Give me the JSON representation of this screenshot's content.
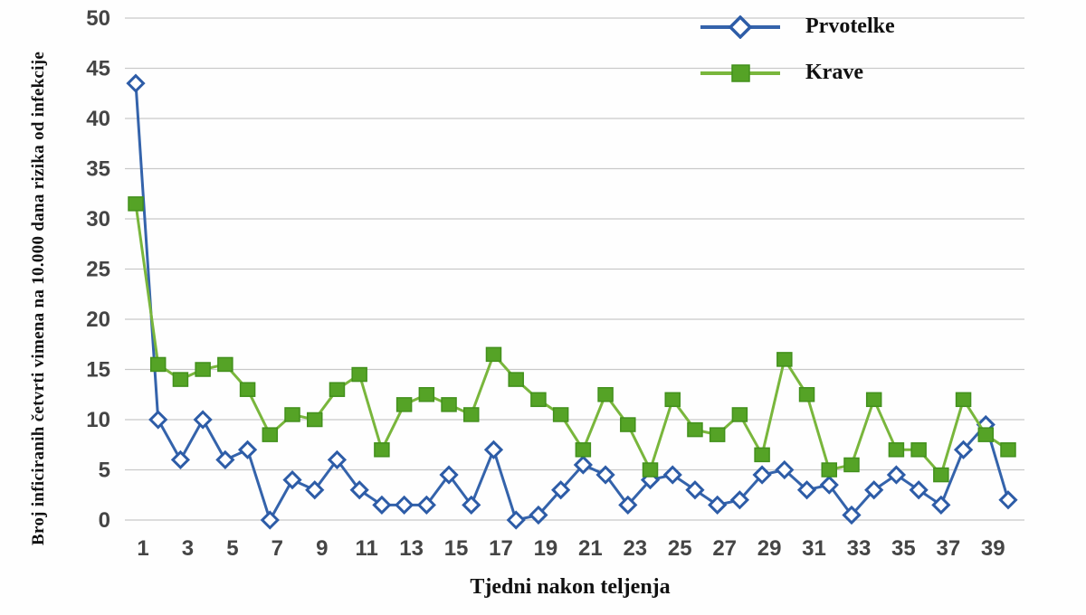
{
  "chart_data": {
    "type": "line",
    "title": "",
    "xlabel": "Tjedni nakon teljenja",
    "ylabel": "Broj inficiranih četvrti vimena na 10.000 dana rizika od infekcije",
    "x": [
      1,
      2,
      3,
      4,
      5,
      6,
      7,
      8,
      9,
      10,
      11,
      12,
      13,
      14,
      15,
      16,
      17,
      18,
      19,
      20,
      21,
      22,
      23,
      24,
      25,
      26,
      27,
      28,
      29,
      30,
      31,
      32,
      33,
      34,
      35,
      36,
      37,
      38,
      39,
      40
    ],
    "x_tick_labels": [
      "1",
      "3",
      "5",
      "7",
      "9",
      "11",
      "13",
      "15",
      "17",
      "19",
      "21",
      "23",
      "25",
      "27",
      "29",
      "31",
      "33",
      "35",
      "37",
      "39"
    ],
    "x_ticks_at": [
      1,
      3,
      5,
      7,
      9,
      11,
      13,
      15,
      17,
      19,
      21,
      23,
      25,
      27,
      29,
      31,
      33,
      35,
      37,
      39
    ],
    "y_ticks": [
      0,
      5,
      10,
      15,
      20,
      25,
      30,
      35,
      40,
      45,
      50
    ],
    "ylim": [
      0,
      50
    ],
    "grid": "horizontal",
    "gridline_color": "#c9c9c9",
    "legend_position": "top-right-inside",
    "series": [
      {
        "name": "Prvotelke",
        "marker": "open-diamond",
        "line_color": "#3463ab",
        "marker_fill": "#ffffff",
        "marker_stroke": "#2d5ca7",
        "values": [
          43.5,
          10,
          6,
          10,
          6,
          7,
          0,
          4,
          3,
          6,
          3,
          1.5,
          1.5,
          1.5,
          4.5,
          1.5,
          7,
          0,
          0.5,
          3,
          5.5,
          4.5,
          1.5,
          4,
          4.5,
          3,
          1.5,
          2,
          4.5,
          5,
          3,
          3.5,
          0.5,
          3,
          4.5,
          3,
          1.5,
          7,
          9.5,
          2
        ]
      },
      {
        "name": "Krave",
        "marker": "filled-square",
        "line_color": "#79b63c",
        "marker_fill": "#55a326",
        "marker_stroke": "#42901c",
        "values": [
          31.5,
          15.5,
          14,
          15,
          15.5,
          13,
          8.5,
          10.5,
          10,
          13,
          14.5,
          7,
          11.5,
          12.5,
          11.5,
          10.5,
          16.5,
          14,
          12,
          10.5,
          7,
          12.5,
          9.5,
          5,
          12,
          9,
          8.5,
          10.5,
          6.5,
          16,
          12.5,
          5,
          5.5,
          12,
          7,
          7,
          4.5,
          12,
          8.5,
          7
        ]
      }
    ]
  }
}
